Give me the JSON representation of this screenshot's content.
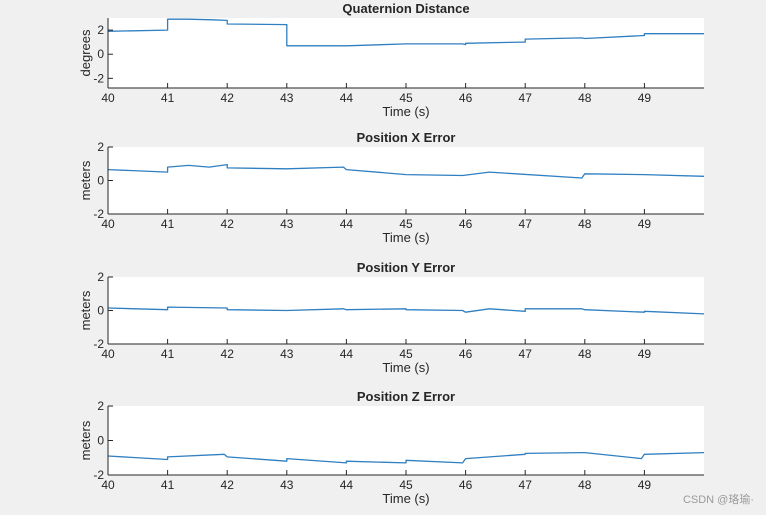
{
  "watermark": "CSDN @珞瑜·",
  "colors": {
    "line": "#2f7fc1",
    "axes_bg": "#ffffff",
    "figure_bg": "#f0f0f0",
    "axis": "#262626"
  },
  "chart_data": [
    {
      "type": "line",
      "title": "Quaternion Distance",
      "xlabel": "Time (s)",
      "ylabel": "degrees",
      "xlim": [
        40,
        50
      ],
      "ylim": [
        -2.8,
        3
      ],
      "xticks": [
        40,
        41,
        42,
        43,
        44,
        45,
        46,
        47,
        48,
        49
      ],
      "yticks": [
        -2,
        0,
        2
      ],
      "grid": false,
      "series": [
        {
          "values": [
            [
              40,
              1.9
            ],
            [
              41,
              2.0
            ],
            [
              41,
              2.9
            ],
            [
              41.35,
              2.9
            ],
            [
              41.75,
              2.85
            ],
            [
              42,
              2.8
            ],
            [
              42,
              2.5
            ],
            [
              43,
              2.45
            ],
            [
              43,
              0.7
            ],
            [
              44,
              0.7
            ],
            [
              45,
              0.85
            ],
            [
              45.95,
              0.85
            ],
            [
              46,
              0.8
            ],
            [
              46,
              0.9
            ],
            [
              46.95,
              1.0
            ],
            [
              47,
              1.0
            ],
            [
              47,
              1.25
            ],
            [
              47.95,
              1.35
            ],
            [
              48,
              1.3
            ],
            [
              49,
              1.55
            ],
            [
              49,
              1.7
            ],
            [
              50,
              1.7
            ]
          ]
        }
      ]
    },
    {
      "type": "line",
      "title": "Position X Error",
      "xlabel": "Time (s)",
      "ylabel": "meters",
      "xlim": [
        40,
        50
      ],
      "ylim": [
        -2,
        2
      ],
      "xticks": [
        40,
        41,
        42,
        43,
        44,
        45,
        46,
        47,
        48,
        49
      ],
      "yticks": [
        -2,
        0,
        2
      ],
      "grid": false,
      "series": [
        {
          "values": [
            [
              40,
              0.65
            ],
            [
              41,
              0.5
            ],
            [
              41,
              0.8
            ],
            [
              41.35,
              0.9
            ],
            [
              41.7,
              0.8
            ],
            [
              42,
              0.95
            ],
            [
              42,
              0.75
            ],
            [
              43,
              0.7
            ],
            [
              43.95,
              0.8
            ],
            [
              44,
              0.65
            ],
            [
              45,
              0.35
            ],
            [
              45.95,
              0.3
            ],
            [
              46.4,
              0.5
            ],
            [
              47.95,
              0.15
            ],
            [
              48,
              0.4
            ],
            [
              49,
              0.35
            ],
            [
              50,
              0.25
            ]
          ]
        }
      ]
    },
    {
      "type": "line",
      "title": "Position Y Error",
      "xlabel": "Time (s)",
      "ylabel": "meters",
      "xlim": [
        40,
        50
      ],
      "ylim": [
        -2,
        2
      ],
      "xticks": [
        40,
        41,
        42,
        43,
        44,
        45,
        46,
        47,
        48,
        49
      ],
      "yticks": [
        -2,
        0,
        2
      ],
      "grid": false,
      "series": [
        {
          "values": [
            [
              40,
              0.15
            ],
            [
              41,
              0.05
            ],
            [
              41,
              0.2
            ],
            [
              42,
              0.15
            ],
            [
              42,
              0.05
            ],
            [
              43,
              0.0
            ],
            [
              43.95,
              0.1
            ],
            [
              44,
              0.05
            ],
            [
              45,
              0.1
            ],
            [
              45,
              0.05
            ],
            [
              45.95,
              0.0
            ],
            [
              46,
              -0.1
            ],
            [
              46.4,
              0.1
            ],
            [
              47,
              -0.05
            ],
            [
              47,
              0.1
            ],
            [
              47.95,
              0.1
            ],
            [
              48,
              0.05
            ],
            [
              49,
              -0.1
            ],
            [
              49,
              -0.05
            ],
            [
              50,
              -0.2
            ]
          ]
        }
      ]
    },
    {
      "type": "line",
      "title": "Position Z Error",
      "xlabel": "Time (s)",
      "ylabel": "meters",
      "xlim": [
        40,
        50
      ],
      "ylim": [
        -2,
        2
      ],
      "xticks": [
        40,
        41,
        42,
        43,
        44,
        45,
        46,
        47,
        48,
        49
      ],
      "yticks": [
        -2,
        0,
        2
      ],
      "grid": false,
      "series": [
        {
          "values": [
            [
              40,
              -0.9
            ],
            [
              41,
              -1.1
            ],
            [
              41,
              -0.95
            ],
            [
              41.95,
              -0.8
            ],
            [
              42,
              -0.95
            ],
            [
              43,
              -1.2
            ],
            [
              43,
              -1.05
            ],
            [
              44,
              -1.3
            ],
            [
              44,
              -1.2
            ],
            [
              45,
              -1.3
            ],
            [
              45,
              -1.15
            ],
            [
              45.95,
              -1.3
            ],
            [
              46,
              -1.05
            ],
            [
              47,
              -0.8
            ],
            [
              47,
              -0.75
            ],
            [
              47.95,
              -0.7
            ],
            [
              48,
              -0.7
            ],
            [
              48.95,
              -1.05
            ],
            [
              49,
              -0.8
            ],
            [
              50,
              -0.7
            ]
          ]
        }
      ]
    }
  ]
}
